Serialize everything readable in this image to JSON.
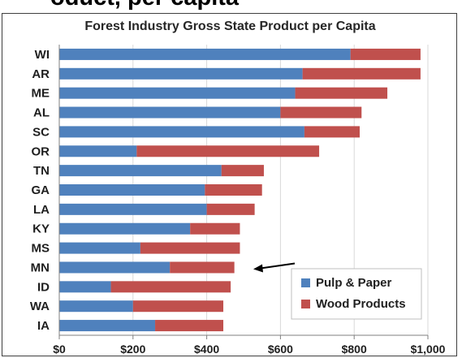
{
  "page": {
    "heading_fragment": "oduct, per capita"
  },
  "colors": {
    "pulp_paper": "#4f81bd",
    "wood_products": "#c0504d",
    "grid": "#d9d9d9",
    "axis": "#7f7f7f",
    "arrow": "#000000"
  },
  "chart_data": {
    "type": "bar",
    "orientation": "horizontal",
    "stacked": true,
    "title": "Forest Industry Gross State Product per Capita",
    "xlabel": "",
    "ylabel": "",
    "categories": [
      "WI",
      "AR",
      "ME",
      "AL",
      "SC",
      "OR",
      "TN",
      "GA",
      "LA",
      "KY",
      "MS",
      "MN",
      "ID",
      "WA",
      "IA"
    ],
    "series": [
      {
        "name": "Pulp & Paper",
        "color": "#4f81bd",
        "values": [
          790,
          660,
          640,
          600,
          665,
          210,
          440,
          395,
          400,
          355,
          220,
          300,
          140,
          200,
          260
        ]
      },
      {
        "name": "Wood Products",
        "color": "#c0504d",
        "values": [
          190,
          320,
          250,
          220,
          150,
          495,
          115,
          155,
          130,
          135,
          270,
          175,
          325,
          245,
          185
        ]
      }
    ],
    "xlim": [
      0,
      1000
    ],
    "xticks": [
      0,
      200,
      400,
      600,
      800,
      1000
    ],
    "xtick_labels": [
      "$0",
      "$200",
      "$400",
      "$600",
      "$800",
      "$1,000"
    ],
    "grid": true,
    "legend_position": "bottom-right",
    "annotation": {
      "type": "arrow",
      "target_category": "MN",
      "direction": "pointing-left"
    }
  }
}
